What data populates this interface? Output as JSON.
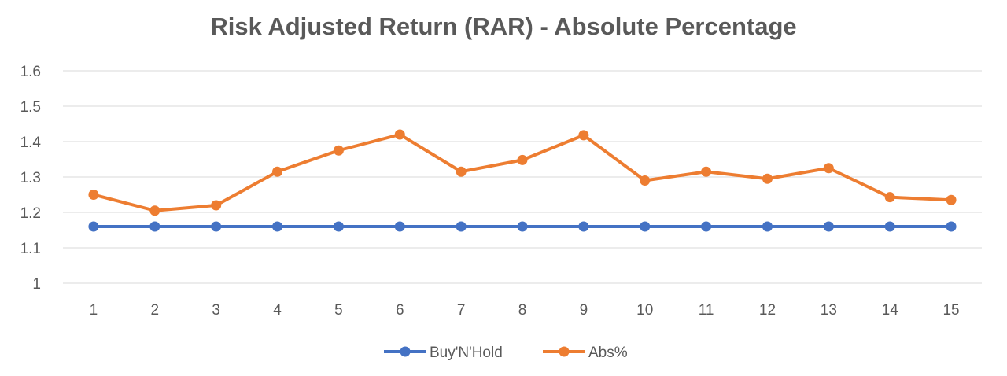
{
  "chart_data": {
    "type": "line",
    "title": "Risk Adjusted Return (RAR) - Absolute Percentage",
    "xlabel": "",
    "ylabel": "",
    "categories": [
      "1",
      "2",
      "3",
      "4",
      "5",
      "6",
      "7",
      "8",
      "9",
      "10",
      "11",
      "12",
      "13",
      "14",
      "15"
    ],
    "ylim": [
      1,
      1.6
    ],
    "yticks": [
      "1",
      "1.1",
      "1.2",
      "1.3",
      "1.4",
      "1.5",
      "1.6"
    ],
    "grid": true,
    "legend_position": "bottom",
    "series": [
      {
        "name": "Buy'N'Hold",
        "color": "#4472c4",
        "values": [
          1.16,
          1.16,
          1.16,
          1.16,
          1.16,
          1.16,
          1.16,
          1.16,
          1.16,
          1.16,
          1.16,
          1.16,
          1.16,
          1.16,
          1.16
        ]
      },
      {
        "name": "Abs%",
        "color": "#ed7d31",
        "values": [
          1.25,
          1.205,
          1.22,
          1.315,
          1.375,
          1.42,
          1.315,
          1.348,
          1.418,
          1.29,
          1.315,
          1.295,
          1.325,
          1.243,
          1.235
        ]
      }
    ]
  }
}
